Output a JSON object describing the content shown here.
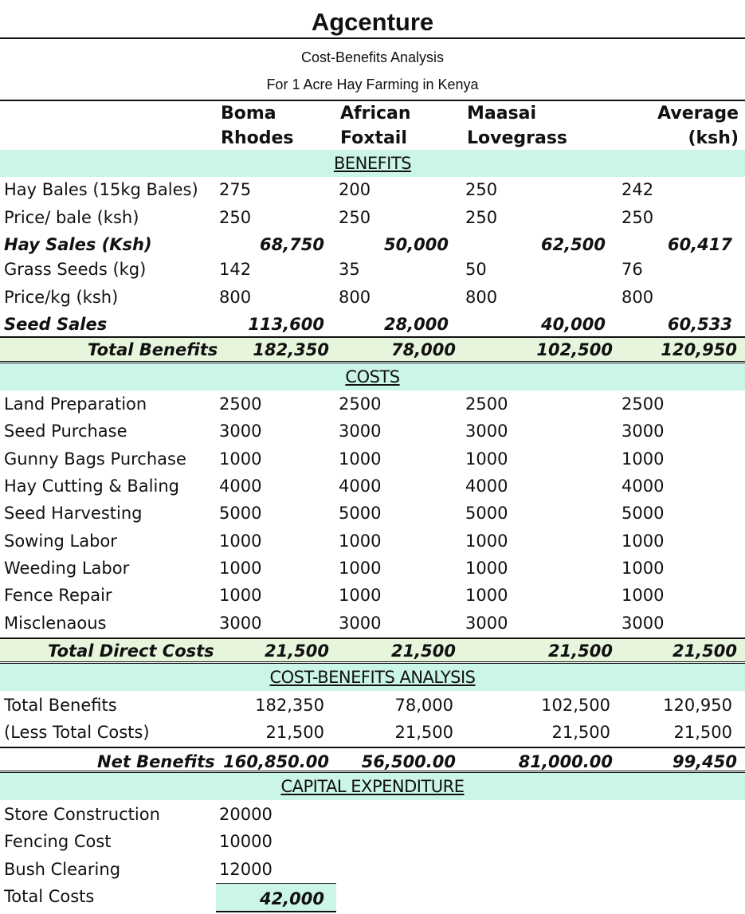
{
  "title": "Agcenture",
  "subtitle1": "Cost-Benefits Analysis",
  "subtitle2": "For 1 Acre Hay Farming in Kenya",
  "columns": [
    {
      "line1": "Boma",
      "line2": "Rhodes"
    },
    {
      "line1": "African",
      "line2": "Foxtail"
    },
    {
      "line1": "Maasai",
      "line2": "Lovegrass"
    },
    {
      "line1": "Average",
      "line2": "(ksh)"
    }
  ],
  "benefits": {
    "heading": "BENEFITS",
    "hay_bales": {
      "label": "Hay Bales (15kg Bales)",
      "values": [
        "275",
        "200",
        "250",
        "242"
      ]
    },
    "price_bale": {
      "label": "Price/ bale (ksh)",
      "values": [
        "250",
        "250",
        "250",
        "250"
      ]
    },
    "hay_sales": {
      "label": "Hay Sales (Ksh)",
      "values": [
        "68,750",
        "50,000",
        "62,500",
        "60,417"
      ]
    },
    "grass_seeds": {
      "label": "Grass Seeds (kg)",
      "values": [
        "142",
        "35",
        "50",
        "76"
      ]
    },
    "price_kg": {
      "label": "Price/kg (ksh)",
      "values": [
        "800",
        "800",
        "800",
        "800"
      ]
    },
    "seed_sales": {
      "label": "Seed Sales",
      "values": [
        "113,600",
        "28,000",
        "40,000",
        "60,533"
      ]
    },
    "total": {
      "label": "Total Benefits",
      "values": [
        "182,350",
        "78,000",
        "102,500",
        "120,950"
      ]
    }
  },
  "costs": {
    "heading": "COSTS",
    "items": [
      {
        "label": "Land Preparation",
        "values": [
          "2500",
          "2500",
          "2500",
          "2500"
        ]
      },
      {
        "label": "Seed Purchase",
        "values": [
          "3000",
          "3000",
          "3000",
          "3000"
        ]
      },
      {
        "label": "Gunny Bags Purchase",
        "values": [
          "1000",
          "1000",
          "1000",
          "1000"
        ]
      },
      {
        "label": "Hay Cutting & Baling",
        "values": [
          "4000",
          "4000",
          "4000",
          "4000"
        ]
      },
      {
        "label": "Seed Harvesting",
        "values": [
          "5000",
          "5000",
          "5000",
          "5000"
        ]
      },
      {
        "label": "Sowing Labor",
        "values": [
          "1000",
          "1000",
          "1000",
          "1000"
        ]
      },
      {
        "label": "Weeding Labor",
        "values": [
          "1000",
          "1000",
          "1000",
          "1000"
        ]
      },
      {
        "label": "Fence Repair",
        "values": [
          "1000",
          "1000",
          "1000",
          "1000"
        ]
      },
      {
        "label": "Misclenaous",
        "values": [
          "3000",
          "3000",
          "3000",
          "3000"
        ]
      }
    ],
    "total": {
      "label": "Total Direct Costs",
      "values": [
        "21,500",
        "21,500",
        "21,500",
        "21,500"
      ]
    }
  },
  "analysis": {
    "heading": "COST-BENEFITS ANALYSIS",
    "total_benefits": {
      "label": "Total Benefits",
      "values": [
        "182,350",
        "78,000",
        "102,500",
        "120,950"
      ]
    },
    "less_costs": {
      "label": "(Less Total Costs)",
      "values": [
        "21,500",
        "21,500",
        "21,500",
        "21,500"
      ]
    },
    "net": {
      "label": "Net Benefits",
      "values": [
        "160,850.00",
        "56,500.00",
        "81,000.00",
        "99,450"
      ]
    }
  },
  "capex": {
    "heading": "CAPITAL EXPENDITURE",
    "items": [
      {
        "label": "Store Construction",
        "value": "20000"
      },
      {
        "label": "Fencing Cost",
        "value": "10000"
      },
      {
        "label": "Bush Clearing",
        "value": "12000"
      }
    ],
    "total": {
      "label": "Total Costs",
      "value": "42,000"
    }
  }
}
